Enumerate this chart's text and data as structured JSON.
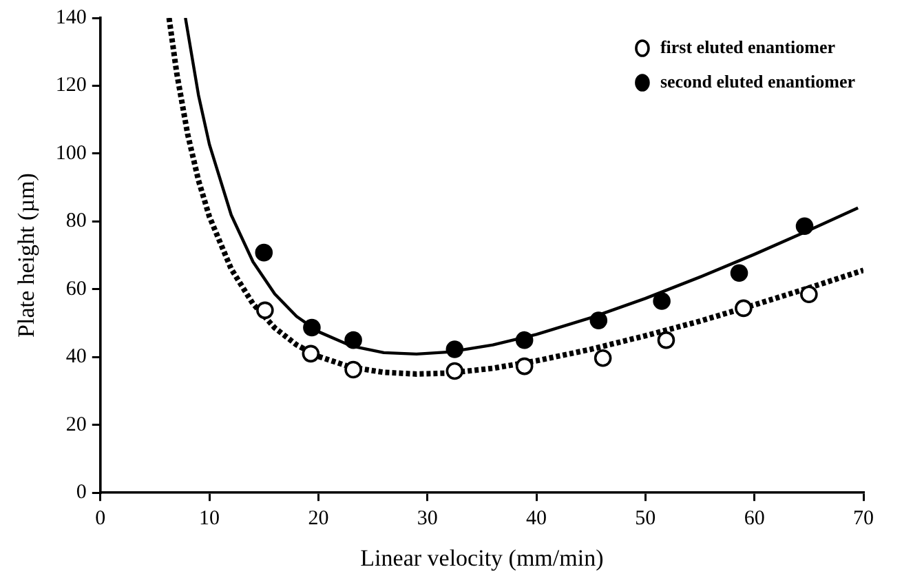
{
  "chart_data": {
    "type": "scatter",
    "xlabel": "Linear velocity (mm/min)",
    "ylabel": "Plate height (µm)",
    "xlim": [
      0,
      70
    ],
    "xticks": [
      0,
      10,
      20,
      30,
      40,
      50,
      60,
      70
    ],
    "ylim": [
      0,
      140
    ],
    "yticks": [
      0,
      20,
      40,
      60,
      80,
      100,
      120,
      140
    ],
    "grid": false,
    "legend": "top right",
    "series": [
      {
        "name": "first eluted enantiomer",
        "marker": "circle",
        "color": "#ffffff",
        "x": [
          15.1,
          19.3,
          23.2,
          32.5,
          38.9,
          46.1,
          51.9,
          59.0,
          65.0
        ],
        "values": [
          53.8,
          41.0,
          36.3,
          35.9,
          37.3,
          39.7,
          45.0,
          54.4,
          58.5
        ]
      },
      {
        "name": "second eluted enantiomer",
        "marker": "circle",
        "color": "#000000",
        "x": [
          15.0,
          19.4,
          23.2,
          32.5,
          38.9,
          45.7,
          51.5,
          58.6,
          64.6
        ],
        "values": [
          70.8,
          48.7,
          45.0,
          42.3,
          45.0,
          50.8,
          56.5,
          64.8,
          78.6
        ]
      },
      {
        "type": "line",
        "color": "#000000",
        "line_style": "solid",
        "marker": "none",
        "x": [
          7.8,
          9,
          10,
          12,
          14,
          16,
          18,
          20,
          23,
          26,
          29,
          32,
          36,
          40,
          45,
          50,
          55,
          60,
          65,
          69.5
        ],
        "values": [
          140.0,
          117.2,
          102.7,
          81.9,
          68.1,
          58.6,
          52.0,
          47.5,
          43.3,
          41.3,
          40.9,
          41.5,
          43.6,
          46.7,
          51.6,
          57.3,
          63.6,
          70.3,
          77.4,
          84.0
        ]
      },
      {
        "type": "line",
        "color": "#000000",
        "line_style": "dotted",
        "marker": "none",
        "x": [
          6.3,
          7,
          8,
          9,
          10,
          12,
          14,
          16,
          18,
          20,
          23,
          26,
          29,
          32,
          36,
          40,
          45,
          50,
          55,
          60,
          65,
          70
        ],
        "values": [
          140.0,
          123.8,
          105.8,
          92.1,
          81.4,
          66.0,
          55.7,
          48.6,
          43.6,
          40.2,
          37.0,
          35.5,
          35.0,
          35.3,
          36.7,
          38.9,
          42.3,
          46.3,
          50.6,
          55.4,
          60.4,
          65.6
        ]
      }
    ]
  }
}
